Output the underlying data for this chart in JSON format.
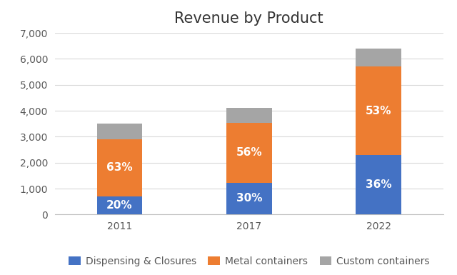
{
  "title": "Revenue by Product",
  "categories": [
    "2011",
    "2017",
    "2022"
  ],
  "dispensing": [
    700,
    1230,
    2300
  ],
  "metal": [
    2200,
    2300,
    3400
  ],
  "custom": [
    600,
    570,
    700
  ],
  "dispensing_pct": [
    "20%",
    "30%",
    "36%"
  ],
  "metal_pct": [
    "63%",
    "56%",
    "53%"
  ],
  "color_dispensing": "#4472C4",
  "color_metal": "#ED7D31",
  "color_custom": "#A5A5A5",
  "ylim": [
    0,
    7000
  ],
  "yticks": [
    0,
    1000,
    2000,
    3000,
    4000,
    5000,
    6000,
    7000
  ],
  "legend_labels": [
    "Dispensing & Closures",
    "Metal containers",
    "Custom containers"
  ],
  "title_fontsize": 15,
  "label_fontsize": 11,
  "tick_fontsize": 10,
  "legend_fontsize": 10,
  "bar_width": 0.35,
  "tick_color": "#595959",
  "background_color": "#FFFFFF",
  "grid_color": "#D9D9D9"
}
